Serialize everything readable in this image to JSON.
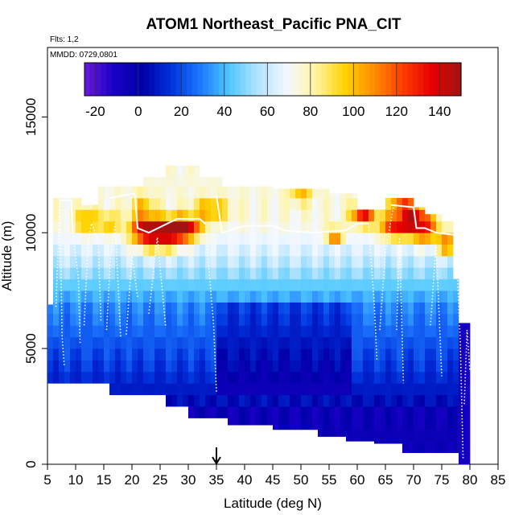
{
  "chart_data": {
    "type": "heatmap",
    "title": "ATOM1 Northeast_Pacific PNA_CIT",
    "flights_label": "Flts: 1,2",
    "date_label": "MMDD: 0729,0801",
    "xlabel": "Latitude (deg N)",
    "ylabel": "Altitude (m)",
    "xlim": [
      5,
      85
    ],
    "ylim": [
      0,
      18000
    ],
    "x_ticks": [
      "5",
      "10",
      "15",
      "20",
      "25",
      "30",
      "35",
      "40",
      "45",
      "50",
      "55",
      "60",
      "65",
      "70",
      "75",
      "80",
      "85"
    ],
    "y_ticks": [
      "0",
      "5000",
      "10000",
      "15000"
    ],
    "colorbar": {
      "range": [
        -25,
        150
      ],
      "ticks": [
        "-20",
        "0",
        "20",
        "40",
        "60",
        "80",
        "100",
        "120",
        "140"
      ],
      "colors": [
        "#6a1bd6",
        "#1a00c8",
        "#0000a8",
        "#0032dc",
        "#1e78ff",
        "#4fc8ff",
        "#b4e4ff",
        "#f4f8ff",
        "#fff4a0",
        "#ffd200",
        "#ff8c00",
        "#ff3c00",
        "#e60000",
        "#a01414"
      ]
    },
    "marker_latitude": 35,
    "grid": false
  }
}
